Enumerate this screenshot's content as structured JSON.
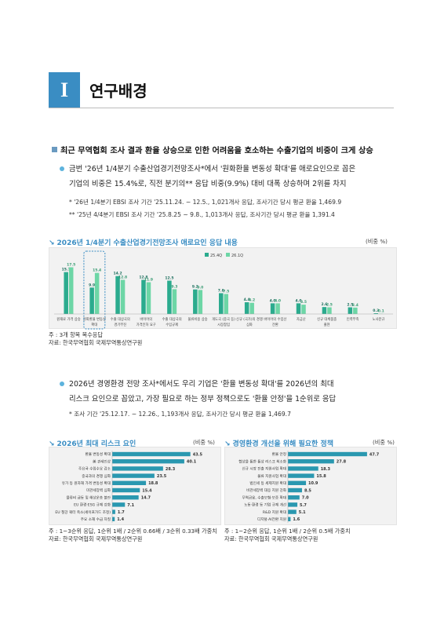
{
  "section": {
    "number": "I",
    "title": "연구배경"
  },
  "bullet1": "최근 무역협회 조사 결과 환율 상승으로 인한 어려움을 호소하는 수출기업의 비중이 크게 상승",
  "para1": {
    "line1": "금번 '26년 1/4분기 수출산업경기전망조사*에서 '원화환율 변동성 확대'를 애로요인으로 꼽은",
    "line2": "기업의 비중은 15.4%로, 직전 분기의** 응답 비중(9.9%) 대비 대폭 상승하며 2위를 차지"
  },
  "notes1": {
    "n1": "* '26년 1/4분기 EBSI 조사 기간 '25.11.24. ~ 12.5., 1,021개사 응답, 조사기간 당시 평균 환율 1,469.9",
    "n2": "** '25년 4/4분기 EBSI 조사 기간 '25.8.25 ~ 9.8., 1,013개사 응답, 조사기간 당시 평균 환율 1,391.4"
  },
  "chart1_meta": {
    "heading": "2026년 1/4분기 수출산업경기전망조사 애로요인 응답 내용",
    "unit": "(비중 %)",
    "foot1": "주 : 3개 항목 복수응답",
    "foot2": "자료: 한국무역협회 국제무역통상연구원"
  },
  "para2": {
    "line1": "2026년 경영환경 전망 조사*에서도 우리 기업은 '환율 변동성 확대'를 2026년의 최대",
    "line2": "리스크 요인으로 꼽았고, 가장 필요로 하는 정부 정책으로도 '환율 안정'을 1순위로 응답"
  },
  "note2": "* 조사 기간 '25.12.17. ~ 12.26., 1,193개사 응답, 조사기간 당시 평균 환율 1,469.7",
  "chart2_meta": {
    "heading": "2026년 최대 리스크 요인",
    "unit": "(비중 %)",
    "foot1": "주 : 1~3순위 응답, 1순위 1배 / 2순위 0.66배 / 3순위 0.33배 가중치",
    "foot2": "자료: 한국무역협회 국제무역통상연구원"
  },
  "chart3_meta": {
    "heading": "경영환경 개선을 위해 필요한 정책",
    "unit": "(비중 %)",
    "foot1": "주 : 1~2순위 응답, 1순위 1배 / 2순위 0.5배 가중치",
    "foot2": "자료: 한국무역협회 국제무역통상연구원"
  },
  "colors": {
    "accent": "#3a8dc3",
    "series_a": "#2bab8e",
    "series_b": "#6dd6a6",
    "hbar": "#2a98b0"
  },
  "chart_data": [
    {
      "type": "bar",
      "series": [
        {
          "name": "25.4Q",
          "values": [
            15.7,
            9.9,
            14.2,
            12.8,
            12.5,
            9.2,
            7.8,
            4.4,
            4.0,
            4.0,
            2.6,
            2.5,
            0.3
          ]
        },
        {
          "name": "26.1Q",
          "values": [
            17.5,
            15.4,
            12.8,
            11.9,
            9.3,
            9.0,
            7.5,
            4.2,
            4.0,
            3.5,
            2.5,
            2.4,
            0.1
          ]
        }
      ],
      "categories": [
        [
          "원재료 가격 상승"
        ],
        [
          "원화환율 변동성",
          "확대"
        ],
        [
          "수출 대상국의",
          "경기부진"
        ],
        [
          "바이어의",
          "가격인하 요구"
        ],
        [
          "수출 대상국의",
          "수입규제"
        ],
        [
          "물류비용 상승"
        ],
        [
          "개도국 (중국 등)",
          "시장참입"
        ],
        [
          "신규 (국가)의 경쟁",
          "심화"
        ],
        [
          "바이어의 수입선",
          "전환"
        ],
        [
          "자금난"
        ],
        [
          "신규 대체품종",
          "출현"
        ],
        [
          "인력부족"
        ],
        [
          "노사분규"
        ]
      ],
      "legend": "top-right",
      "highlight_category_index": 1
    },
    {
      "type": "bar",
      "orientation": "horizontal",
      "categories": [
        "환율 변동성 확대",
        "美 관세인상",
        "주요국 수입수요 감소",
        "중국과의 경쟁 심화",
        "유가 등 원자재 가격 변동성 확대",
        "미관세장벽 심화",
        "물류비 급등 및 해상운송 불안",
        "EU 환경·ESG 규제 강화",
        "EU 철강 쿼터 축소(세이프가드 조정)",
        "주요 소재 수급 차질"
      ],
      "values": [
        43.5,
        40.1,
        28.3,
        23.5,
        18.8,
        15.4,
        14.7,
        7.1,
        1.7,
        1.4
      ]
    },
    {
      "type": "bar",
      "orientation": "horizontal",
      "categories": [
        "환율 안정",
        "협상을 통한 통상 리스크 최소화",
        "신규 시장 진출 지원사업 확대",
        "물류 지원사업 확대",
        "법인세 등 세제지원 확대",
        "비관세장벽 대응 지원 강화",
        "무역금융, 수출보험·보증 확대",
        "노동·환경 등 기업 규제 개선",
        "R&D 지원 확대",
        "디지털·AI전환 지원"
      ],
      "values": [
        47.7,
        27.8,
        18.3,
        15.8,
        10.9,
        8.5,
        7.0,
        5.7,
        5.1,
        1.6
      ]
    }
  ]
}
